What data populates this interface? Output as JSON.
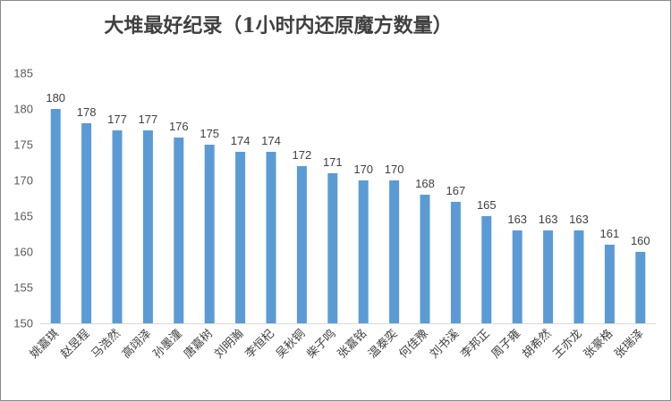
{
  "chart_data": {
    "type": "bar",
    "title": "大堆最好纪录（1小时内还原魔方数量）",
    "categories": [
      "姚嘉琪",
      "赵昱程",
      "马浩然",
      "高翊泽",
      "孙墨潼",
      "唐嘉树",
      "刘明瀚",
      "李恒杞",
      "吴秋铜",
      "柴子鸣",
      "张嘉铭",
      "温泰奕",
      "何佳豫",
      "刘书溪",
      "李邦正",
      "周子雍",
      "胡希然",
      "王亦龙",
      "张豪格",
      "张瑞泽"
    ],
    "values": [
      180,
      178,
      177,
      177,
      176,
      175,
      174,
      174,
      172,
      171,
      170,
      170,
      168,
      167,
      165,
      163,
      163,
      163,
      161,
      160
    ],
    "ylim": [
      150,
      185
    ],
    "yticks": [
      150,
      155,
      160,
      165,
      170,
      175,
      180,
      185
    ],
    "xlabel": "",
    "ylabel": "",
    "grid": false,
    "bar_color": "#5b9bd5",
    "data_labels": true
  }
}
